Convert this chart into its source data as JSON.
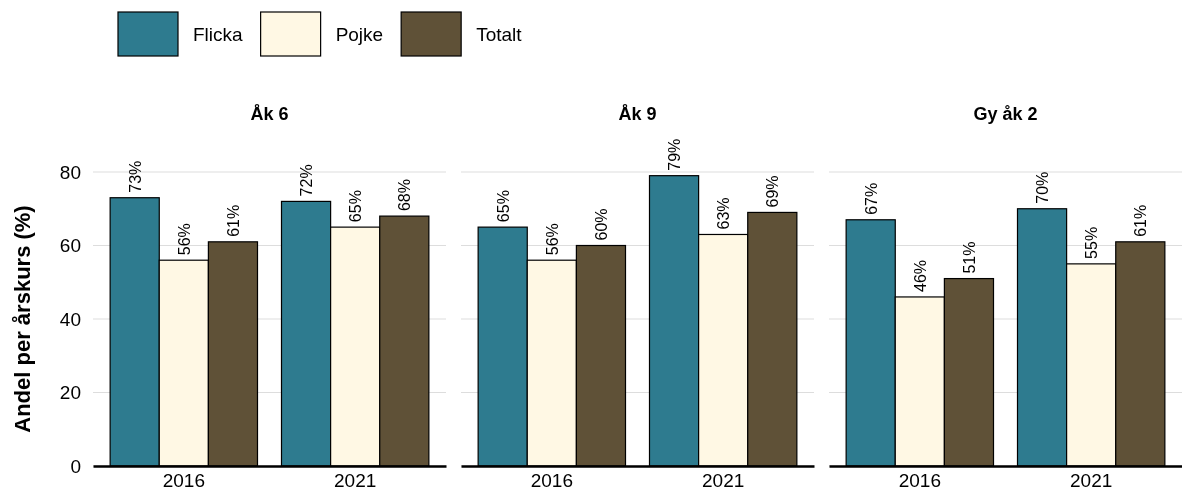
{
  "chart_data": [
    {
      "type": "bar",
      "title": "Åk 6",
      "ylabel": "Andel per årskurs (%)",
      "categories": [
        "2016",
        "2021"
      ],
      "ylim": [
        0,
        80
      ],
      "yticks": [
        0,
        20,
        40,
        60,
        80
      ],
      "grid": "y",
      "legend": "top",
      "series": [
        {
          "name": "Flicka",
          "color": "#2e7b8f",
          "values": [
            73,
            72
          ],
          "value_labels": [
            "73%",
            "72%"
          ]
        },
        {
          "name": "Pojke",
          "color": "#fff8e4",
          "values": [
            56,
            65
          ],
          "value_labels": [
            "56%",
            "65%"
          ]
        },
        {
          "name": "Totalt",
          "color": "#5f5137",
          "values": [
            61,
            68
          ],
          "value_labels": [
            "61%",
            "68%"
          ]
        }
      ]
    },
    {
      "type": "bar",
      "title": "Åk 9",
      "categories": [
        "2016",
        "2021"
      ],
      "ylim": [
        0,
        80
      ],
      "yticks": [
        0,
        20,
        40,
        60,
        80
      ],
      "grid": "y",
      "tick_labels": "x",
      "series": [
        {
          "color": "#2e7b8f",
          "values": [
            65,
            79
          ],
          "value_labels": [
            "65%",
            "79%"
          ]
        },
        {
          "color": "#fff8e4",
          "values": [
            56,
            63
          ],
          "value_labels": [
            "56%",
            "63%"
          ]
        },
        {
          "color": "#5f5137",
          "values": [
            60,
            69
          ],
          "value_labels": [
            "60%",
            "69%"
          ]
        }
      ]
    },
    {
      "type": "bar",
      "title": "Gy åk 2",
      "categories": [
        "2016",
        "2021"
      ],
      "ylim": [
        0,
        80
      ],
      "yticks": [
        0,
        20,
        40,
        60,
        80
      ],
      "grid": "y",
      "tick_labels": "x",
      "series": [
        {
          "color": "#2e7b8f",
          "values": [
            67,
            70
          ],
          "value_labels": [
            "67%",
            "70%"
          ]
        },
        {
          "color": "#fff8e4",
          "values": [
            46,
            55
          ],
          "value_labels": [
            "46%",
            "55%"
          ]
        },
        {
          "color": "#5f5137",
          "values": [
            51,
            61
          ],
          "value_labels": [
            "51%",
            "61%"
          ]
        }
      ]
    }
  ]
}
